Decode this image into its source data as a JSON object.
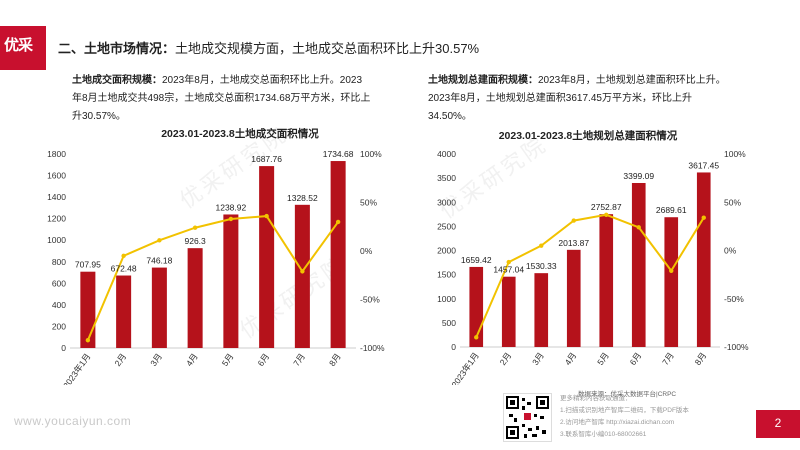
{
  "logo": {
    "text": "优采"
  },
  "heading": {
    "main": "二、土地市场情况：",
    "sub": "土地成交规模方面，土地成交总面积环比上升30.57%"
  },
  "left_text": {
    "label": "土地成交面积规模：",
    "body": "2023年8月，土地成交总面积环比上升。2023年8月土地成交共498宗，土地成交总面积1734.68万平方米，环比上升30.57%。"
  },
  "right_text": {
    "label": "土地规划总建面积规模：",
    "body": "2023年8月，土地规划总建面积环比上升。2023年8月，土地规划总建面积3617.45万平方米，环比上升34.50%。"
  },
  "footer": {
    "source": "数据来源：优采大数据平台|CRPC",
    "lines": [
      "更多精彩内容获取通道：",
      "1.扫描或识别地产智库二维码，下载PDF版本",
      "2.访问地产智库 http://xiazai.dichan.com",
      "3.联系智库小编010-68002661"
    ],
    "website": "www.youcaiyun.com",
    "page": "2"
  },
  "colors": {
    "bar": "#b5121b",
    "line": "#f2c200",
    "brand": "#c8102e"
  },
  "chart_data": [
    {
      "type": "bar",
      "title": "2023.01-2023.8土地成交面积情况",
      "categories": [
        "2023年1月",
        "2月",
        "3月",
        "4月",
        "5月",
        "6月",
        "7月",
        "8月"
      ],
      "series": [
        {
          "name": "土地成交面积（万㎡）",
          "kind": "bar",
          "axis": "left",
          "values": [
            707.95,
            672.48,
            746.18,
            926.3,
            1238.92,
            1687.76,
            1328.52,
            1734.68
          ]
        },
        {
          "name": "环比",
          "kind": "line",
          "axis": "right",
          "values": [
            -92,
            -5,
            11,
            24,
            33,
            36,
            -21,
            30
          ]
        }
      ],
      "ylim_left": [
        0,
        1800
      ],
      "yticks_left": [
        "0",
        "200",
        "400",
        "600",
        "800",
        "1000",
        "1200",
        "1400",
        "1600",
        "1800"
      ],
      "ylim_right": [
        -100,
        100
      ],
      "yticks_right": [
        "-100%",
        "-50%",
        "0%",
        "50%",
        "100%"
      ],
      "legend": "bottom"
    },
    {
      "type": "bar",
      "title": "2023.01-2023.8土地规划总建面积情况",
      "categories": [
        "2023年1月",
        "2月",
        "3月",
        "4月",
        "5月",
        "6月",
        "7月",
        "8月"
      ],
      "series": [
        {
          "name": "土地规划总建面积（万㎡）",
          "kind": "bar",
          "axis": "left",
          "values": [
            1659.42,
            1457.04,
            1530.33,
            2013.87,
            2752.87,
            3399.09,
            2689.61,
            3617.45
          ]
        },
        {
          "name": "环比",
          "kind": "line",
          "axis": "right",
          "values": [
            -90,
            -12,
            5,
            31,
            37,
            24,
            -21,
            34
          ]
        }
      ],
      "ylim_left": [
        0,
        4000
      ],
      "yticks_left": [
        "0",
        "500",
        "1000",
        "1500",
        "2000",
        "2500",
        "3000",
        "3500",
        "4000"
      ],
      "ylim_right": [
        -100,
        100
      ],
      "yticks_right": [
        "-100%",
        "-50%",
        "0%",
        "50%",
        "100%"
      ],
      "legend": "bottom"
    }
  ]
}
